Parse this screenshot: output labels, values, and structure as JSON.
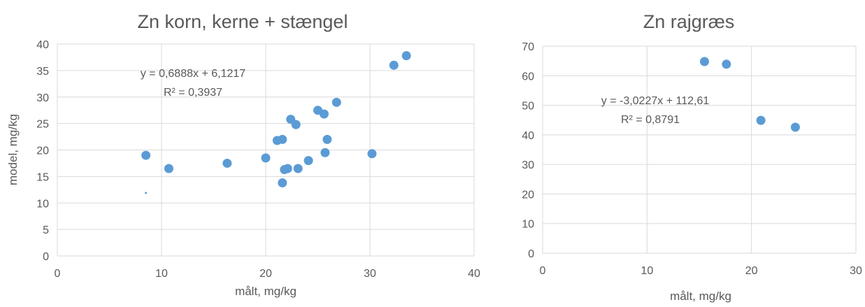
{
  "chart_data": [
    {
      "type": "scatter",
      "title": "Zn korn, kerne + stængel",
      "xlabel": "målt, mg/kg",
      "ylabel": "model, mg/kg",
      "xlim": [
        0,
        40
      ],
      "ylim": [
        0,
        40
      ],
      "xticks": [
        "0",
        "10",
        "20",
        "30",
        "40"
      ],
      "yticks": [
        "0",
        "5",
        "10",
        "15",
        "20",
        "25",
        "30",
        "35",
        "40"
      ],
      "grid": true,
      "color": "#5b9bd5",
      "trendline": {
        "equation": "y = 0,6888x + 6,1217",
        "r2": "R² = 0,3937"
      },
      "points": [
        {
          "x": 8.5,
          "y": 19.0
        },
        {
          "x": 10.7,
          "y": 16.5
        },
        {
          "x": 8.5,
          "y": 11.9
        },
        {
          "x": 16.3,
          "y": 17.5
        },
        {
          "x": 20.0,
          "y": 18.5
        },
        {
          "x": 21.1,
          "y": 21.8
        },
        {
          "x": 21.6,
          "y": 22.0
        },
        {
          "x": 21.6,
          "y": 13.8
        },
        {
          "x": 21.8,
          "y": 16.3
        },
        {
          "x": 22.1,
          "y": 16.5
        },
        {
          "x": 22.4,
          "y": 25.8
        },
        {
          "x": 22.9,
          "y": 24.8
        },
        {
          "x": 23.1,
          "y": 16.5
        },
        {
          "x": 24.1,
          "y": 18.0
        },
        {
          "x": 25.0,
          "y": 27.5
        },
        {
          "x": 25.6,
          "y": 26.8
        },
        {
          "x": 25.7,
          "y": 19.5
        },
        {
          "x": 25.9,
          "y": 22.0
        },
        {
          "x": 26.8,
          "y": 29.0
        },
        {
          "x": 30.2,
          "y": 19.3
        },
        {
          "x": 32.3,
          "y": 36.0
        },
        {
          "x": 33.5,
          "y": 37.8
        }
      ]
    },
    {
      "type": "scatter",
      "title": "Zn rajgræs",
      "xlabel": "målt, mg/kg",
      "ylabel": "",
      "xlim": [
        0,
        30
      ],
      "ylim": [
        0,
        70
      ],
      "xticks": [
        "0",
        "10",
        "20",
        "30"
      ],
      "yticks": [
        "0",
        "10",
        "20",
        "30",
        "40",
        "50",
        "60",
        "70"
      ],
      "grid": true,
      "color": "#5b9bd5",
      "trendline": {
        "equation": "y = -3,0227x + 112,61",
        "r2": "R² = 0,8791"
      },
      "points": [
        {
          "x": 15.5,
          "y": 64.8
        },
        {
          "x": 17.6,
          "y": 63.9
        },
        {
          "x": 20.9,
          "y": 44.9
        },
        {
          "x": 24.2,
          "y": 42.6
        }
      ]
    }
  ]
}
